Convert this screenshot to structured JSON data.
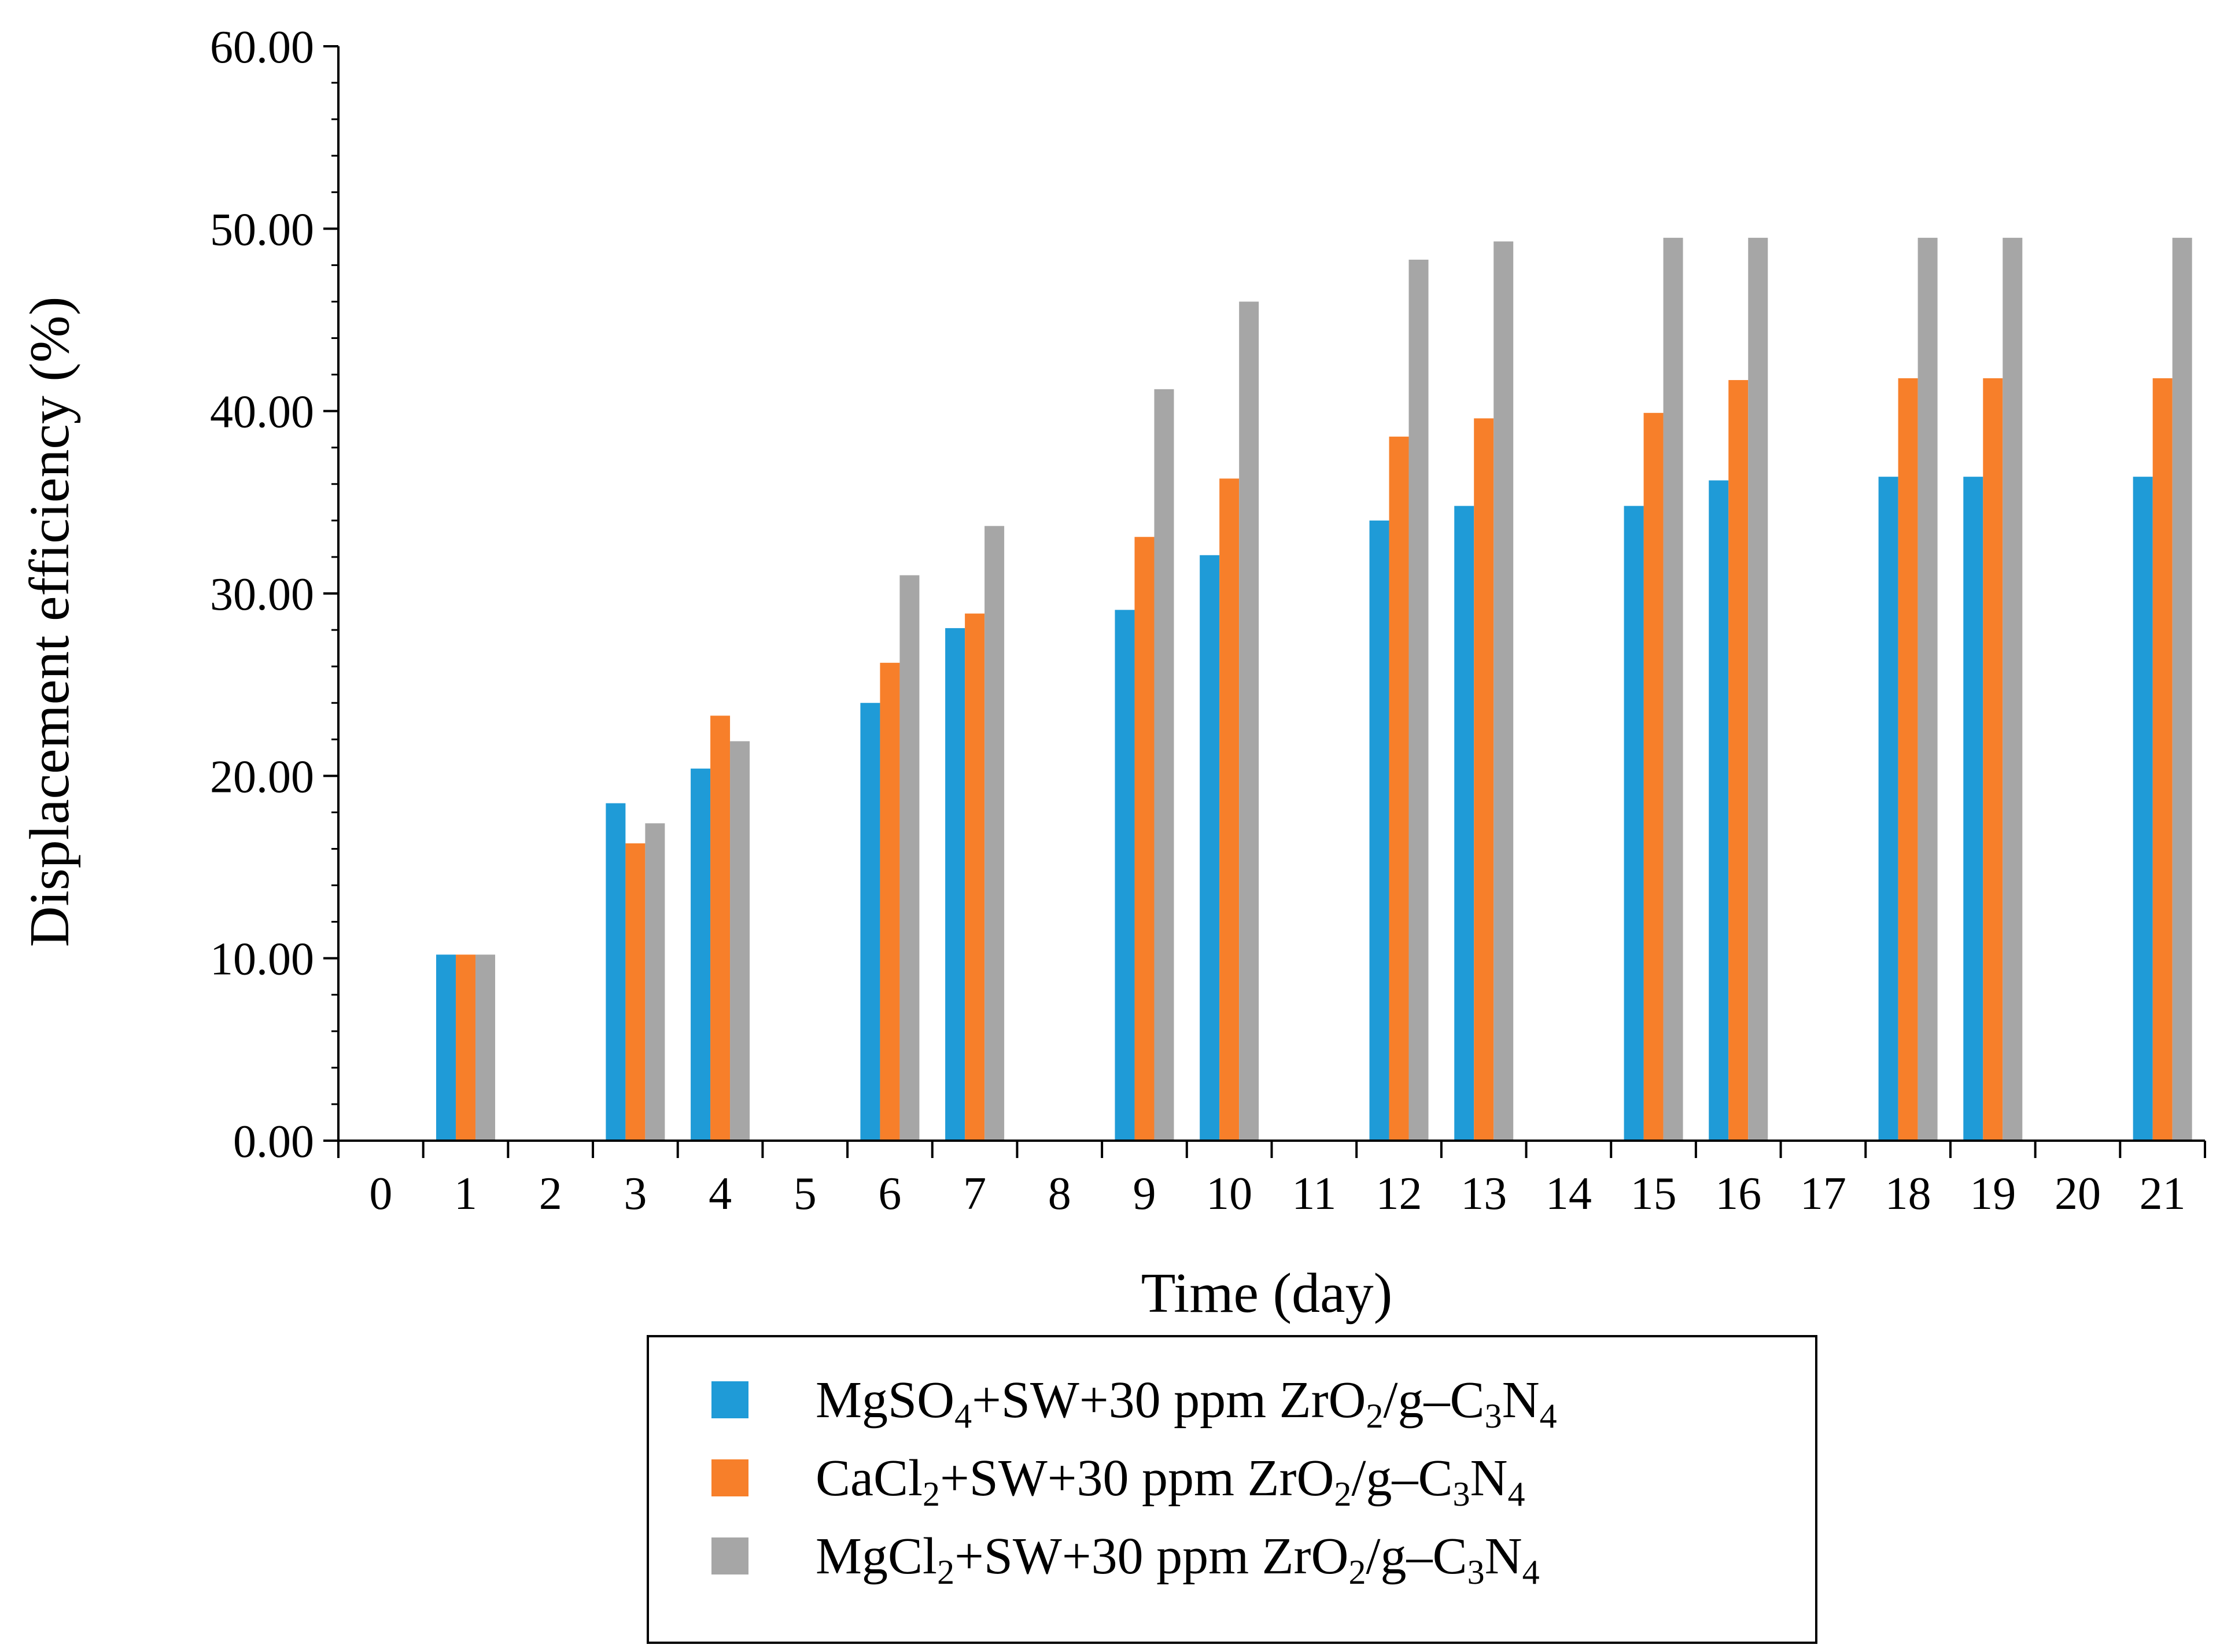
{
  "chart_data": {
    "type": "bar",
    "title": "",
    "xlabel": "Time (day)",
    "ylabel": "Displacement efficiency (%)",
    "ylim": [
      0,
      60
    ],
    "y_tick_step": 10,
    "y_minor_step": 2,
    "y_tick_labels": [
      "0.00",
      "10.00",
      "20.00",
      "30.00",
      "40.00",
      "50.00",
      "60.00"
    ],
    "categories": [
      "0",
      "1",
      "2",
      "3",
      "4",
      "5",
      "6",
      "7",
      "8",
      "9",
      "10",
      "11",
      "12",
      "13",
      "14",
      "15",
      "16",
      "17",
      "18",
      "19",
      "20",
      "21"
    ],
    "grid": false,
    "legend_position": "bottom-center",
    "series": [
      {
        "name": "MgSO4+SW+30 ppm ZrO2/g–C3N4",
        "label_parts": [
          [
            "MgSO",
            "n"
          ],
          [
            "4",
            "sub"
          ],
          [
            "+SW+30 ppm ZrO",
            "n"
          ],
          [
            "2",
            "sub"
          ],
          [
            "/g–C",
            "n"
          ],
          [
            "3",
            "sub"
          ],
          [
            "N",
            "n"
          ],
          [
            "4",
            "sub"
          ]
        ],
        "color": "#1F9BD7",
        "values": [
          null,
          10.2,
          null,
          18.5,
          20.4,
          null,
          24.0,
          28.1,
          null,
          29.1,
          32.1,
          null,
          34.0,
          34.8,
          null,
          34.8,
          36.2,
          null,
          36.4,
          36.4,
          null,
          36.4
        ]
      },
      {
        "name": "CaCl2+SW+30 ppm ZrO2/g–C3N4",
        "label_parts": [
          [
            "CaCl",
            "n"
          ],
          [
            "2",
            "sub"
          ],
          [
            "+SW+30 ppm ZrO",
            "n"
          ],
          [
            "2",
            "sub"
          ],
          [
            "/g–C",
            "n"
          ],
          [
            "3",
            "sub"
          ],
          [
            "N",
            "n"
          ],
          [
            "4",
            "sub"
          ]
        ],
        "color": "#F77F2A",
        "values": [
          null,
          10.2,
          null,
          16.3,
          23.3,
          null,
          26.2,
          28.9,
          null,
          33.1,
          36.3,
          null,
          38.6,
          39.6,
          null,
          39.9,
          41.7,
          null,
          41.8,
          41.8,
          null,
          41.8
        ]
      },
      {
        "name": "MgCl2+SW+30 ppm ZrO2/g–C3N4",
        "label_parts": [
          [
            "MgCl",
            "n"
          ],
          [
            "2",
            "sub"
          ],
          [
            "+SW+30 ppm ZrO",
            "n"
          ],
          [
            "2",
            "sub"
          ],
          [
            "/g–C",
            "n"
          ],
          [
            "3",
            "sub"
          ],
          [
            "N",
            "n"
          ],
          [
            "4",
            "sub"
          ]
        ],
        "color": "#A6A6A6",
        "values": [
          null,
          10.2,
          null,
          17.4,
          21.9,
          null,
          31.0,
          33.7,
          null,
          41.2,
          46.0,
          null,
          48.3,
          49.3,
          null,
          49.5,
          49.5,
          null,
          49.5,
          49.5,
          null,
          49.5
        ]
      }
    ]
  }
}
